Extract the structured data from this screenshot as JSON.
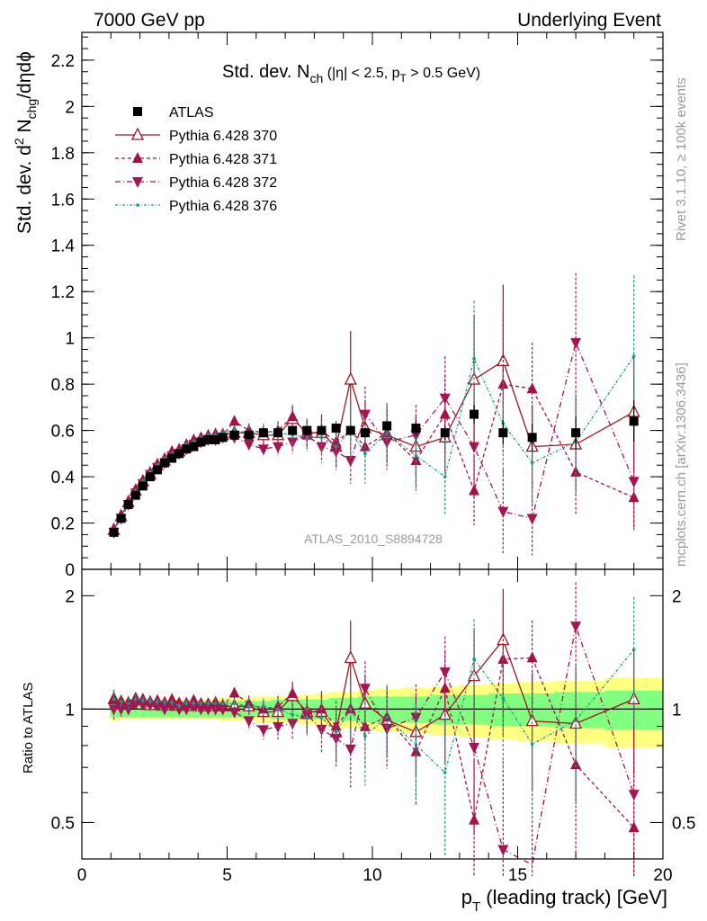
{
  "header": {
    "left": "7000 GeV pp",
    "right": "Underlying Event"
  },
  "side_labels": {
    "rivet": "Rivet 3.1.10, ≥ 100k events",
    "mcplots": "mcplots.cern.ch [arXiv:1306.3436]"
  },
  "watermark": "ATLAS_2010_S8894728",
  "colors": {
    "atlas": "#000000",
    "p370": "#a0141e",
    "p371": "#a8104a",
    "p372": "#a51453",
    "p376": "#1b9a86",
    "band_yellow": "#ffff80",
    "band_green": "#80ff80"
  },
  "chart_data": [
    {
      "type": "scatter",
      "panel": "main",
      "title_parts": {
        "a": "Std. dev. N",
        "a_sub": "ch",
        "b": " (|η| < 2.5, p",
        "b_sub": "T",
        "c": " > 0.5 GeV)"
      },
      "ylabel_parts": {
        "a": "Std. dev. d",
        "a_sup": "2",
        "b": " N",
        "b_sub": "chg",
        "c": "/dηdϕ"
      },
      "ylim": [
        0,
        2.32
      ],
      "yticks": [
        "0",
        "0.2",
        "0.4",
        "0.6",
        "0.8",
        "1",
        "1.2",
        "1.4",
        "1.6",
        "1.8",
        "2",
        "2.2"
      ],
      "legend_position": "top-left",
      "x": [
        1.1,
        1.35,
        1.6,
        1.85,
        2.1,
        2.35,
        2.6,
        2.85,
        3.1,
        3.35,
        3.6,
        3.85,
        4.1,
        4.35,
        4.6,
        4.85,
        5.25,
        5.75,
        6.25,
        6.75,
        7.25,
        7.75,
        8.25,
        8.75,
        9.25,
        9.75,
        10.5,
        11.5,
        12.5,
        13.5,
        14.5,
        15.5,
        17.0,
        19.0
      ],
      "series": [
        {
          "name": "ATLAS",
          "marker": "square",
          "values": [
            0.16,
            0.22,
            0.28,
            0.32,
            0.36,
            0.4,
            0.43,
            0.46,
            0.48,
            0.5,
            0.52,
            0.53,
            0.55,
            0.56,
            0.56,
            0.57,
            0.58,
            0.58,
            0.59,
            0.59,
            0.6,
            0.6,
            0.6,
            0.61,
            0.6,
            0.59,
            0.62,
            0.61,
            0.59,
            0.67,
            0.59,
            0.57,
            0.59,
            0.64
          ],
          "errors": [
            0.01,
            0.01,
            0.01,
            0.01,
            0.01,
            0.01,
            0.01,
            0.01,
            0.01,
            0.01,
            0.01,
            0.01,
            0.01,
            0.01,
            0.01,
            0.01,
            0.01,
            0.01,
            0.01,
            0.01,
            0.01,
            0.01,
            0.01,
            0.02,
            0.02,
            0.02,
            0.02,
            0.03,
            0.03,
            0.04,
            0.05,
            0.06,
            0.07,
            0.09
          ]
        },
        {
          "name": "Pythia 6.428 370",
          "marker": "triangle-open",
          "dash": "solid",
          "values": [
            0.17,
            0.23,
            0.29,
            0.34,
            0.38,
            0.41,
            0.45,
            0.47,
            0.5,
            0.51,
            0.53,
            0.55,
            0.56,
            0.57,
            0.58,
            0.58,
            0.59,
            0.59,
            0.58,
            0.58,
            0.65,
            0.59,
            0.59,
            0.53,
            0.82,
            0.61,
            0.58,
            0.53,
            0.57,
            0.82,
            0.9,
            0.53,
            0.54,
            0.68
          ],
          "errors": [
            0.01,
            0.01,
            0.01,
            0.01,
            0.01,
            0.01,
            0.01,
            0.01,
            0.01,
            0.01,
            0.01,
            0.01,
            0.01,
            0.01,
            0.02,
            0.02,
            0.02,
            0.03,
            0.03,
            0.04,
            0.05,
            0.06,
            0.07,
            0.09,
            0.21,
            0.12,
            0.12,
            0.13,
            0.15,
            0.28,
            0.33,
            0.18,
            0.21,
            0.25
          ]
        },
        {
          "name": "Pythia 6.428 371",
          "marker": "triangle",
          "dash": "4,3",
          "values": [
            0.17,
            0.23,
            0.29,
            0.34,
            0.38,
            0.42,
            0.45,
            0.48,
            0.51,
            0.52,
            0.54,
            0.56,
            0.57,
            0.58,
            0.58,
            0.58,
            0.64,
            0.6,
            0.59,
            0.6,
            0.66,
            0.58,
            0.6,
            0.55,
            0.6,
            0.53,
            0.59,
            0.47,
            0.67,
            0.34,
            0.8,
            0.78,
            0.42,
            0.31
          ],
          "errors": [
            0.01,
            0.01,
            0.01,
            0.01,
            0.01,
            0.01,
            0.01,
            0.01,
            0.01,
            0.01,
            0.01,
            0.01,
            0.01,
            0.01,
            0.02,
            0.02,
            0.02,
            0.03,
            0.03,
            0.04,
            0.05,
            0.06,
            0.07,
            0.09,
            0.12,
            0.12,
            0.12,
            0.13,
            0.17,
            0.15,
            0.3,
            0.2,
            0.18,
            0.14
          ]
        },
        {
          "name": "Pythia 6.428 372",
          "marker": "triangle-down",
          "dash": "6,3,1,3",
          "values": [
            0.16,
            0.22,
            0.28,
            0.33,
            0.37,
            0.41,
            0.44,
            0.46,
            0.49,
            0.5,
            0.52,
            0.54,
            0.55,
            0.56,
            0.56,
            0.57,
            0.57,
            0.54,
            0.52,
            0.53,
            0.55,
            0.58,
            0.53,
            0.51,
            0.47,
            0.67,
            0.55,
            0.58,
            0.74,
            0.53,
            0.25,
            0.22,
            0.98,
            0.38
          ],
          "errors": [
            0.01,
            0.01,
            0.01,
            0.01,
            0.01,
            0.01,
            0.01,
            0.01,
            0.01,
            0.01,
            0.01,
            0.01,
            0.01,
            0.01,
            0.02,
            0.02,
            0.02,
            0.03,
            0.03,
            0.04,
            0.05,
            0.06,
            0.07,
            0.08,
            0.1,
            0.12,
            0.12,
            0.13,
            0.18,
            0.22,
            0.18,
            0.16,
            0.3,
            0.2
          ]
        },
        {
          "name": "Pythia 6.428 376",
          "marker": "dot",
          "dash": "3,2,1,2",
          "values": [
            0.17,
            0.23,
            0.29,
            0.34,
            0.38,
            0.42,
            0.45,
            0.48,
            0.5,
            0.51,
            0.54,
            0.55,
            0.57,
            0.58,
            0.58,
            0.59,
            0.6,
            0.59,
            0.6,
            0.59,
            0.58,
            0.57,
            0.57,
            0.53,
            0.6,
            0.5,
            0.59,
            0.49,
            0.4,
            0.91,
            0.63,
            0.46,
            0.55,
            0.92
          ],
          "errors": [
            0.01,
            0.01,
            0.01,
            0.01,
            0.01,
            0.01,
            0.01,
            0.01,
            0.01,
            0.01,
            0.01,
            0.01,
            0.01,
            0.01,
            0.02,
            0.02,
            0.02,
            0.03,
            0.03,
            0.04,
            0.05,
            0.06,
            0.07,
            0.09,
            0.12,
            0.13,
            0.13,
            0.14,
            0.16,
            0.25,
            0.22,
            0.18,
            0.22,
            0.35
          ]
        }
      ]
    },
    {
      "type": "scatter",
      "panel": "ratio",
      "ylabel": "Ratio to ATLAS",
      "ylim": [
        0.4,
        2.35
      ],
      "yscale": "log",
      "yticks_left": [
        "0.5",
        "1",
        "2"
      ],
      "yticks_right": [
        "0.5",
        "1",
        "2"
      ],
      "xlabel_parts": {
        "a": "p",
        "a_sub": "T",
        "b": " (leading track) [GeV]"
      },
      "xlim": [
        0,
        20
      ],
      "xticks": [
        "0",
        "5",
        "10",
        "15",
        "20"
      ],
      "band_inner": [
        0.05,
        0.05,
        0.05,
        0.05,
        0.05,
        0.05,
        0.05,
        0.05,
        0.05,
        0.05,
        0.05,
        0.05,
        0.05,
        0.05,
        0.05,
        0.05,
        0.05,
        0.05,
        0.05,
        0.06,
        0.06,
        0.06,
        0.06,
        0.07,
        0.07,
        0.08,
        0.08,
        0.08,
        0.09,
        0.09,
        0.1,
        0.1,
        0.11,
        0.12
      ],
      "band_outer": [
        0.07,
        0.06,
        0.06,
        0.06,
        0.06,
        0.06,
        0.06,
        0.06,
        0.06,
        0.06,
        0.06,
        0.06,
        0.06,
        0.06,
        0.06,
        0.07,
        0.07,
        0.07,
        0.08,
        0.08,
        0.08,
        0.09,
        0.1,
        0.11,
        0.11,
        0.12,
        0.13,
        0.14,
        0.15,
        0.16,
        0.17,
        0.18,
        0.19,
        0.21
      ]
    }
  ]
}
